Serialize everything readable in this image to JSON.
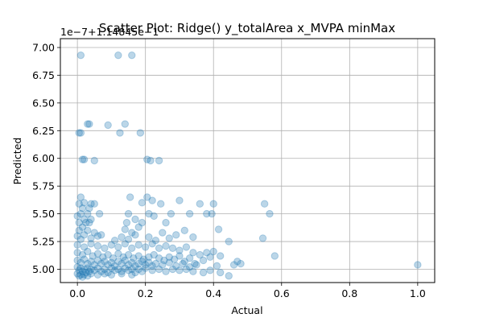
{
  "chart_data": {
    "type": "scatter",
    "title": "Scatter Plot: Ridge() y_totalArea x_MVPA minMax",
    "xlabel": "Actual",
    "ylabel": "Predicted",
    "y_offset_text": "1e−7+1.14845e−1",
    "xlim": [
      -0.05,
      1.05
    ],
    "ylim": [
      4.88,
      7.08
    ],
    "x_ticks": [
      0.0,
      0.2,
      0.4,
      0.6,
      0.8,
      1.0
    ],
    "x_tick_labels": [
      "0.0",
      "0.2",
      "0.4",
      "0.6",
      "0.8",
      "1.0"
    ],
    "y_ticks": [
      5.0,
      5.25,
      5.5,
      5.75,
      6.0,
      6.25,
      6.5,
      6.75,
      7.0
    ],
    "y_tick_labels": [
      "5.00",
      "5.25",
      "5.50",
      "5.75",
      "6.00",
      "6.25",
      "6.50",
      "6.75",
      "7.00"
    ],
    "grid": true,
    "point_color": "#1f77b4",
    "point_alpha": 0.3,
    "points": [
      [
        0.01,
        6.93
      ],
      [
        0.12,
        6.93
      ],
      [
        0.16,
        6.93
      ],
      [
        0.03,
        6.31
      ],
      [
        0.035,
        6.31
      ],
      [
        0.14,
        6.31
      ],
      [
        0.005,
        6.23
      ],
      [
        0.01,
        6.23
      ],
      [
        0.09,
        6.3
      ],
      [
        0.125,
        6.23
      ],
      [
        0.185,
        6.23
      ],
      [
        0.015,
        5.99
      ],
      [
        0.02,
        5.99
      ],
      [
        0.05,
        5.98
      ],
      [
        0.205,
        5.99
      ],
      [
        0.215,
        5.98
      ],
      [
        0.24,
        5.98
      ],
      [
        0.01,
        5.65
      ],
      [
        0.155,
        5.65
      ],
      [
        0.205,
        5.65
      ],
      [
        0.22,
        5.62
      ],
      [
        0.19,
        5.6
      ],
      [
        0.245,
        5.59
      ],
      [
        0.3,
        5.62
      ],
      [
        0.36,
        5.59
      ],
      [
        0.4,
        5.59
      ],
      [
        0.55,
        5.59
      ],
      [
        0.005,
        5.59
      ],
      [
        0.02,
        5.6
      ],
      [
        0.04,
        5.59
      ],
      [
        0.05,
        5.59
      ],
      [
        0.035,
        5.55
      ],
      [
        0.015,
        5.55
      ],
      [
        0.0,
        5.48
      ],
      [
        0.01,
        5.5
      ],
      [
        0.03,
        5.5
      ],
      [
        0.02,
        5.45
      ],
      [
        0.04,
        5.45
      ],
      [
        0.065,
        5.5
      ],
      [
        0.15,
        5.5
      ],
      [
        0.21,
        5.5
      ],
      [
        0.225,
        5.48
      ],
      [
        0.275,
        5.5
      ],
      [
        0.33,
        5.5
      ],
      [
        0.38,
        5.5
      ],
      [
        0.395,
        5.5
      ],
      [
        0.565,
        5.5
      ],
      [
        0.005,
        5.42
      ],
      [
        0.025,
        5.42
      ],
      [
        0.035,
        5.42
      ],
      [
        0.145,
        5.42
      ],
      [
        0.17,
        5.45
      ],
      [
        0.19,
        5.42
      ],
      [
        0.26,
        5.42
      ],
      [
        0.005,
        5.35
      ],
      [
        0.015,
        5.38
      ],
      [
        0.03,
        5.35
      ],
      [
        0.05,
        5.33
      ],
      [
        0.07,
        5.31
      ],
      [
        0.14,
        5.36
      ],
      [
        0.16,
        5.33
      ],
      [
        0.18,
        5.38
      ],
      [
        0.25,
        5.33
      ],
      [
        0.315,
        5.35
      ],
      [
        0.415,
        5.36
      ],
      [
        0.545,
        5.28
      ],
      [
        0.0,
        5.3
      ],
      [
        0.01,
        5.27
      ],
      [
        0.02,
        5.31
      ],
      [
        0.04,
        5.28
      ],
      [
        0.06,
        5.3
      ],
      [
        0.11,
        5.26
      ],
      [
        0.13,
        5.29
      ],
      [
        0.15,
        5.27
      ],
      [
        0.17,
        5.31
      ],
      [
        0.21,
        5.29
      ],
      [
        0.23,
        5.26
      ],
      [
        0.27,
        5.28
      ],
      [
        0.29,
        5.31
      ],
      [
        0.34,
        5.29
      ],
      [
        0.445,
        5.25
      ],
      [
        0.58,
        5.12
      ],
      [
        0.0,
        5.22
      ],
      [
        0.02,
        5.2
      ],
      [
        0.04,
        5.23
      ],
      [
        0.06,
        5.21
      ],
      [
        0.08,
        5.19
      ],
      [
        0.1,
        5.22
      ],
      [
        0.12,
        5.2
      ],
      [
        0.14,
        5.23
      ],
      [
        0.16,
        5.19
      ],
      [
        0.18,
        5.22
      ],
      [
        0.2,
        5.2
      ],
      [
        0.22,
        5.23
      ],
      [
        0.24,
        5.19
      ],
      [
        0.26,
        5.21
      ],
      [
        0.28,
        5.19
      ],
      [
        0.3,
        5.17
      ],
      [
        0.32,
        5.2
      ],
      [
        0.34,
        5.15
      ],
      [
        0.36,
        5.13
      ],
      [
        0.38,
        5.15
      ],
      [
        0.4,
        5.16
      ],
      [
        0.42,
        5.12
      ],
      [
        0.46,
        5.04
      ],
      [
        0.47,
        5.07
      ],
      [
        0.48,
        5.05
      ],
      [
        0.0,
        5.15
      ],
      [
        0.015,
        5.13
      ],
      [
        0.03,
        5.16
      ],
      [
        0.045,
        5.12
      ],
      [
        0.06,
        5.14
      ],
      [
        0.075,
        5.11
      ],
      [
        0.09,
        5.13
      ],
      [
        0.105,
        5.1
      ],
      [
        0.12,
        5.14
      ],
      [
        0.135,
        5.11
      ],
      [
        0.15,
        5.13
      ],
      [
        0.165,
        5.1
      ],
      [
        0.18,
        5.12
      ],
      [
        0.195,
        5.09
      ],
      [
        0.21,
        5.11
      ],
      [
        0.225,
        5.13
      ],
      [
        0.24,
        5.1
      ],
      [
        0.255,
        5.08
      ],
      [
        0.27,
        5.11
      ],
      [
        0.285,
        5.09
      ],
      [
        0.3,
        5.12
      ],
      [
        0.315,
        5.07
      ],
      [
        0.33,
        5.1
      ],
      [
        0.345,
        5.05
      ],
      [
        0.37,
        5.08
      ],
      [
        0.39,
        5.11
      ],
      [
        0.41,
        5.03
      ],
      [
        0.0,
        5.08
      ],
      [
        0.01,
        5.06
      ],
      [
        0.02,
        5.09
      ],
      [
        0.03,
        5.05
      ],
      [
        0.04,
        5.07
      ],
      [
        0.05,
        5.04
      ],
      [
        0.06,
        5.08
      ],
      [
        0.07,
        5.05
      ],
      [
        0.08,
        5.07
      ],
      [
        0.09,
        5.04
      ],
      [
        0.1,
        5.06
      ],
      [
        0.11,
        5.03
      ],
      [
        0.12,
        5.07
      ],
      [
        0.13,
        5.05
      ],
      [
        0.14,
        5.08
      ],
      [
        0.15,
        5.04
      ],
      [
        0.16,
        5.06
      ],
      [
        0.17,
        5.03
      ],
      [
        0.18,
        5.05
      ],
      [
        0.19,
        5.07
      ],
      [
        0.2,
        5.04
      ],
      [
        0.21,
        5.06
      ],
      [
        0.22,
        5.03
      ],
      [
        0.23,
        5.05
      ],
      [
        0.25,
        5.04
      ],
      [
        0.27,
        5.06
      ],
      [
        0.29,
        5.03
      ],
      [
        0.31,
        5.05
      ],
      [
        0.33,
        5.02
      ],
      [
        0.35,
        5.04
      ],
      [
        0.0,
        5.02
      ],
      [
        0.005,
        4.99
      ],
      [
        0.01,
        5.01
      ],
      [
        0.015,
        4.98
      ],
      [
        0.02,
        5.0
      ],
      [
        0.025,
        4.97
      ],
      [
        0.03,
        5.01
      ],
      [
        0.035,
        4.98
      ],
      [
        0.04,
        5.0
      ],
      [
        0.05,
        4.99
      ],
      [
        0.06,
        5.01
      ],
      [
        0.07,
        4.98
      ],
      [
        0.08,
        5.0
      ],
      [
        0.09,
        4.97
      ],
      [
        0.1,
        5.01
      ],
      [
        0.11,
        4.99
      ],
      [
        0.12,
        5.0
      ],
      [
        0.13,
        4.98
      ],
      [
        0.14,
        5.01
      ],
      [
        0.15,
        4.99
      ],
      [
        0.16,
        5.0
      ],
      [
        0.17,
        4.97
      ],
      [
        0.18,
        5.0
      ],
      [
        0.19,
        4.98
      ],
      [
        0.2,
        5.01
      ],
      [
        0.22,
        4.99
      ],
      [
        0.24,
        5.0
      ],
      [
        0.26,
        4.98
      ],
      [
        0.28,
        5.0
      ],
      [
        0.3,
        4.99
      ],
      [
        0.32,
        5.0
      ],
      [
        0.34,
        4.98
      ],
      [
        0.37,
        4.97
      ],
      [
        0.39,
        4.99
      ],
      [
        0.42,
        4.97
      ],
      [
        0.445,
        4.94
      ],
      [
        0.0,
        4.96
      ],
      [
        0.005,
        4.94
      ],
      [
        0.01,
        4.95
      ],
      [
        0.015,
        4.93
      ],
      [
        0.02,
        4.95
      ],
      [
        0.03,
        4.94
      ],
      [
        0.04,
        4.96
      ],
      [
        0.06,
        4.95
      ],
      [
        0.08,
        4.96
      ],
      [
        0.1,
        4.95
      ],
      [
        0.13,
        4.96
      ],
      [
        0.16,
        4.95
      ],
      [
        1.0,
        5.04
      ]
    ]
  }
}
